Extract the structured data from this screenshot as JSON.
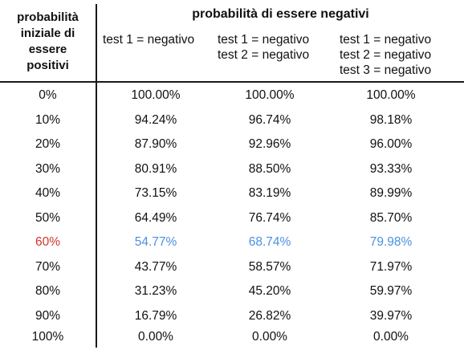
{
  "header": {
    "left_title_lines": [
      "probabilità",
      "iniziale di",
      "essere",
      "positivi"
    ],
    "group_title": "probabilità di essere negativi",
    "columns": [
      {
        "lines": [
          "test 1 = negativo"
        ]
      },
      {
        "lines": [
          "test 1 = negativo",
          "test 2 = negativo"
        ]
      },
      {
        "lines": [
          "test 1 = negativo",
          "test 2 = negativo",
          "test 3 = negativo"
        ]
      }
    ]
  },
  "rows": [
    {
      "prior": "0%",
      "v1": "100.00%",
      "v2": "100.00%",
      "v3": "100.00%",
      "highlight": false
    },
    {
      "prior": "10%",
      "v1": "94.24%",
      "v2": "96.74%",
      "v3": "98.18%",
      "highlight": false
    },
    {
      "prior": "20%",
      "v1": "87.90%",
      "v2": "92.96%",
      "v3": "96.00%",
      "highlight": false
    },
    {
      "prior": "30%",
      "v1": "80.91%",
      "v2": "88.50%",
      "v3": "93.33%",
      "highlight": false
    },
    {
      "prior": "40%",
      "v1": "73.15%",
      "v2": "83.19%",
      "v3": "89.99%",
      "highlight": false
    },
    {
      "prior": "50%",
      "v1": "64.49%",
      "v2": "76.74%",
      "v3": "85.70%",
      "highlight": false
    },
    {
      "prior": "60%",
      "v1": "54.77%",
      "v2": "68.74%",
      "v3": "79.98%",
      "highlight": true
    },
    {
      "prior": "70%",
      "v1": "43.77%",
      "v2": "58.57%",
      "v3": "71.97%",
      "highlight": false
    },
    {
      "prior": "80%",
      "v1": "31.23%",
      "v2": "45.20%",
      "v3": "59.97%",
      "highlight": false
    },
    {
      "prior": "90%",
      "v1": "16.79%",
      "v2": "26.82%",
      "v3": "39.97%",
      "highlight": false
    },
    {
      "prior": "100%",
      "v1": "0.00%",
      "v2": "0.00%",
      "v3": "0.00%",
      "highlight": false
    }
  ],
  "colors": {
    "highlight_prior": "#d0362b",
    "highlight_values": "#4a90e2",
    "text": "#111111",
    "rule": "#1a1a1a"
  }
}
